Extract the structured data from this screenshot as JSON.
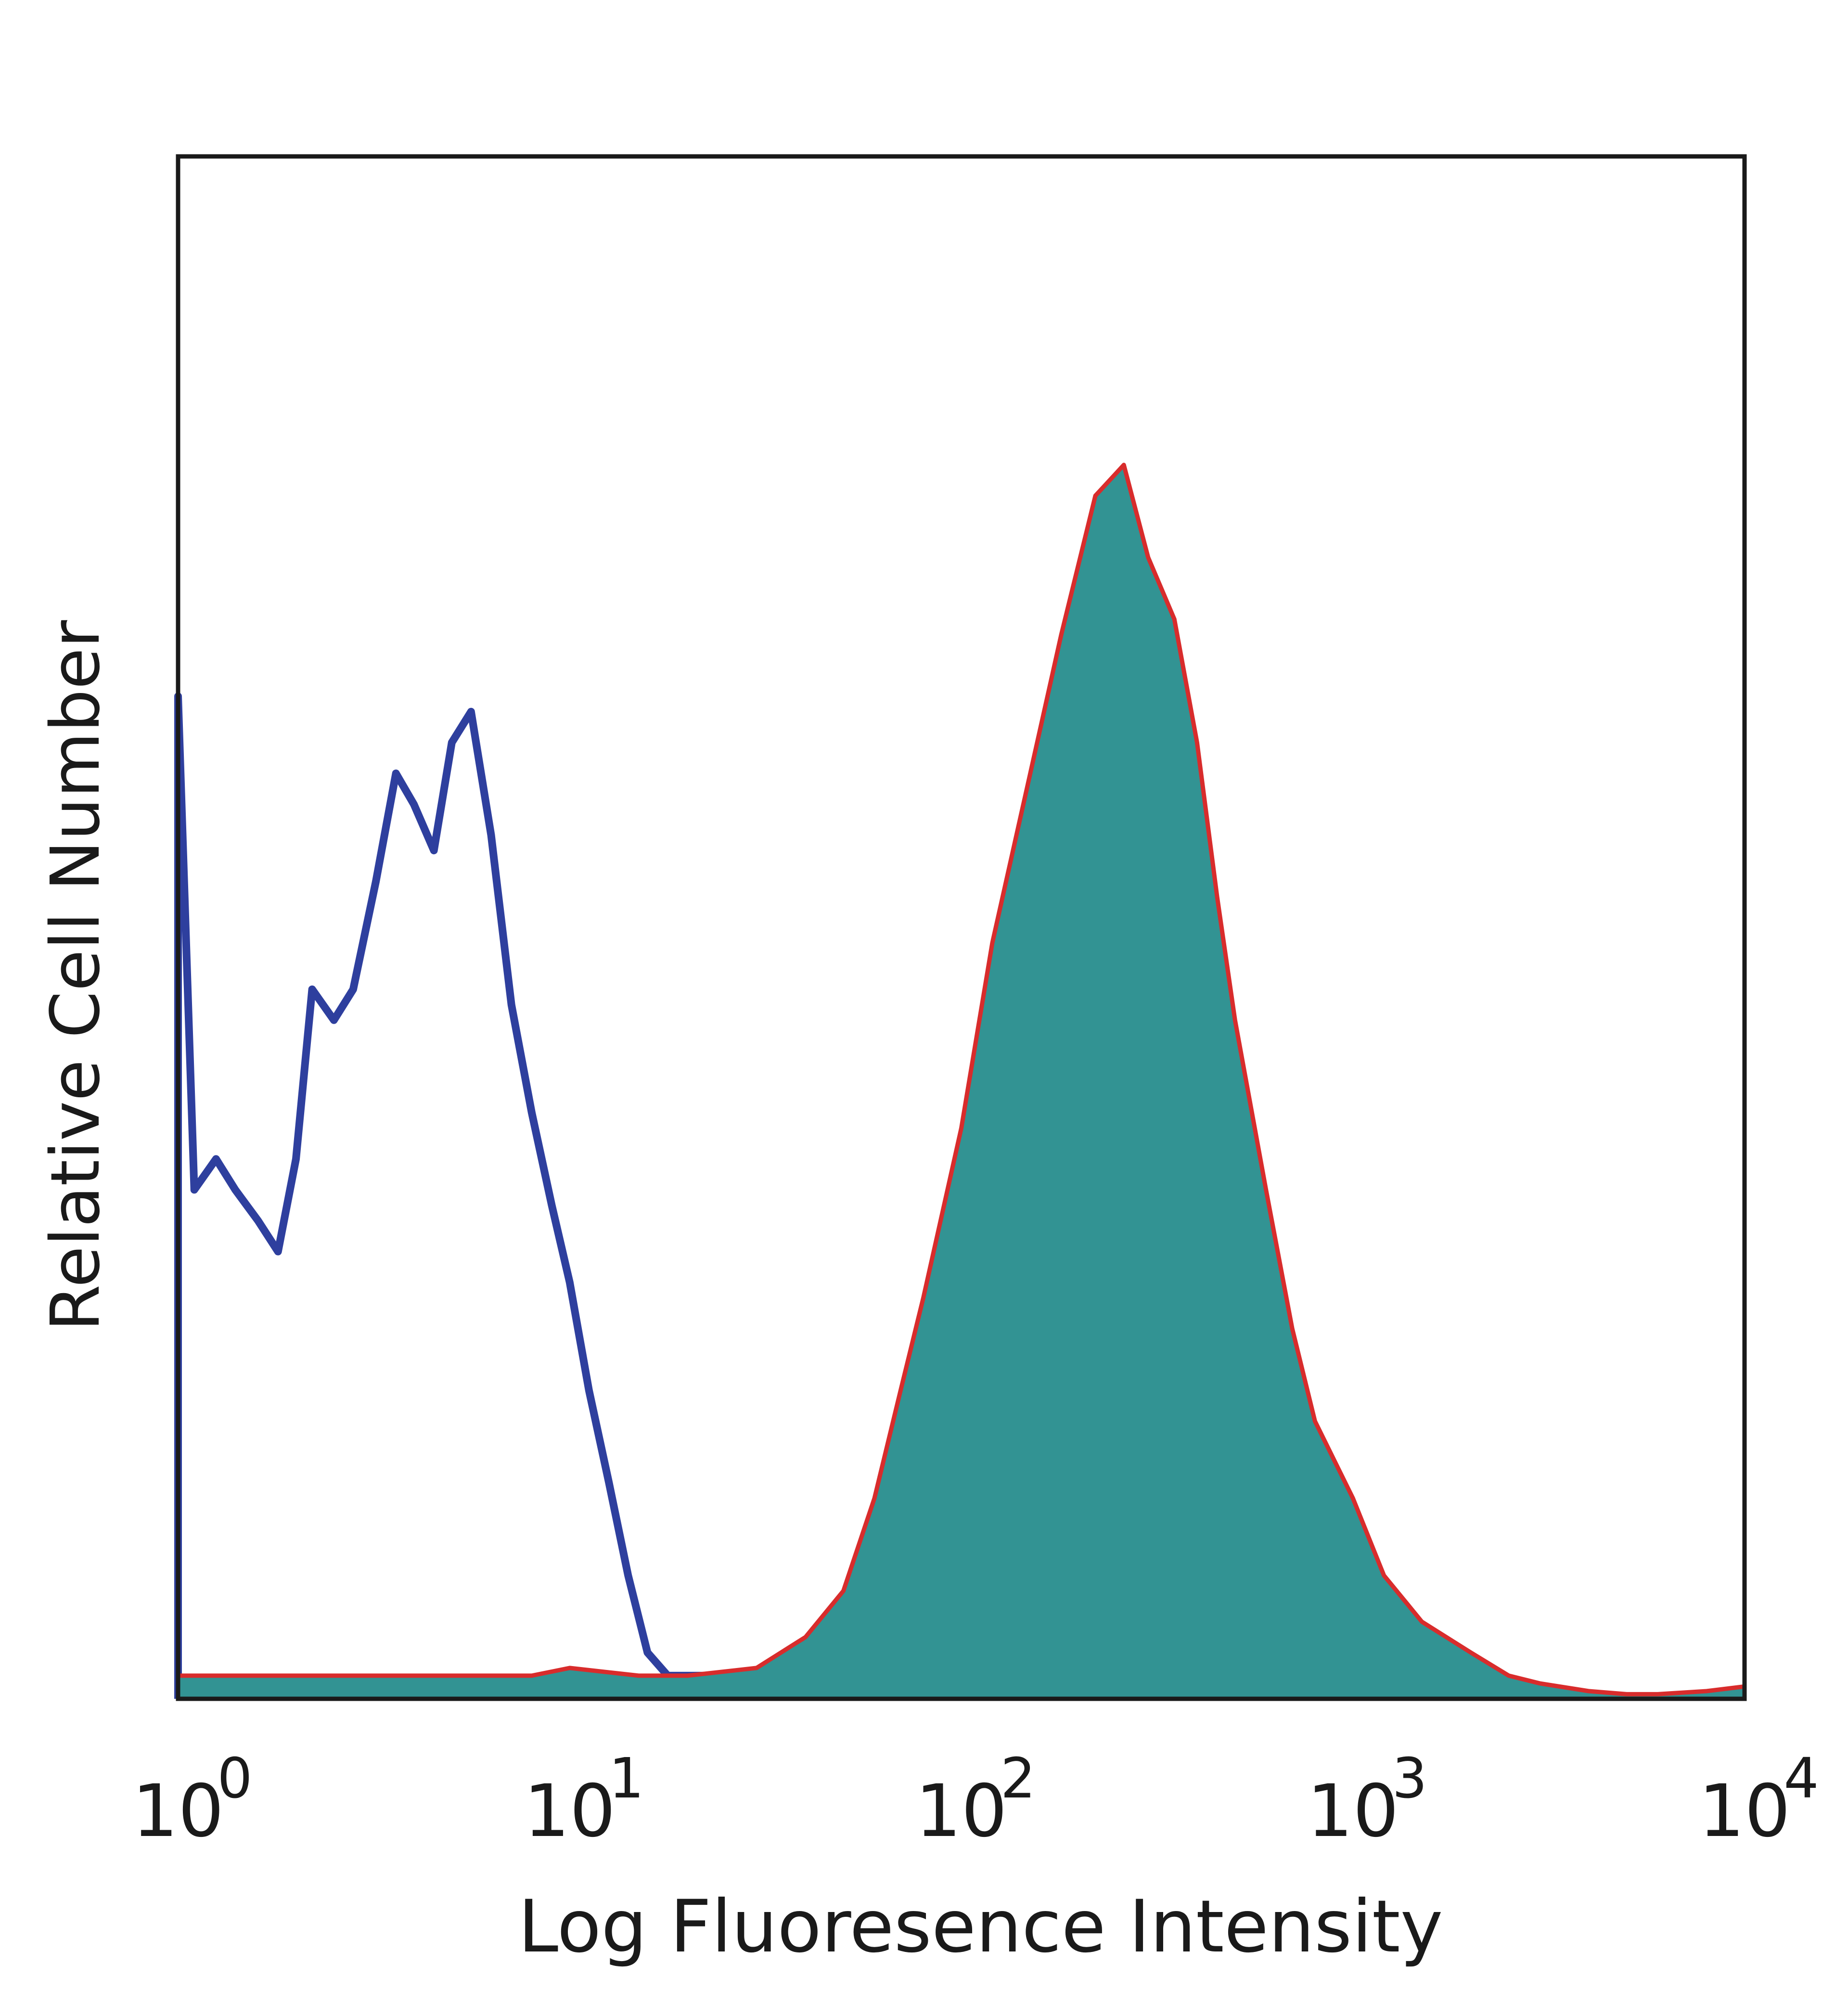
{
  "chart_data": {
    "type": "area",
    "title": "",
    "xlabel": "Log Fluoresence Intensity",
    "ylabel": "Relative Cell Number",
    "x_scale": "log",
    "xlim": [
      1,
      10000
    ],
    "ylim": [
      0,
      100
    ],
    "y_ticks_shown": false,
    "grid": false,
    "legend": "none",
    "x_ticks": [
      {
        "value": 1,
        "base": "10",
        "exp": "0"
      },
      {
        "value": 10,
        "base": "10",
        "exp": "1"
      },
      {
        "value": 100,
        "base": "10",
        "exp": "2"
      },
      {
        "value": 1000,
        "base": "10",
        "exp": "3"
      },
      {
        "value": 10000,
        "base": "10",
        "exp": "4"
      }
    ],
    "series": [
      {
        "style": "outline",
        "color": "#2e3f9e",
        "x": [
          1.0,
          1.1,
          1.25,
          1.4,
          1.6,
          1.8,
          2.0,
          2.2,
          2.5,
          2.8,
          3.2,
          3.6,
          4.0,
          4.5,
          5.0,
          5.6,
          6.3,
          7.1,
          8.0,
          9.0,
          10.0,
          11.2,
          12.6,
          14.1,
          15.8,
          17.8,
          20.0,
          25.0,
          30.0,
          35.0
        ],
        "y": [
          65,
          33,
          35,
          33,
          31,
          29,
          35,
          46,
          44,
          46,
          53,
          60,
          58,
          55,
          62,
          64,
          56,
          45,
          38,
          32,
          27,
          20,
          14,
          8,
          3,
          1.5,
          1.5,
          1.5,
          1.5,
          1.5
        ]
      },
      {
        "style": "filled",
        "color": "#329393",
        "outline_color": "#d82c2c",
        "x": [
          1.0,
          2.0,
          5.0,
          8.0,
          10.0,
          15.0,
          20.0,
          30.0,
          40.0,
          50.0,
          60.0,
          70.0,
          80.0,
          100.0,
          120.0,
          150.0,
          180.0,
          220.0,
          260.0,
          300.0,
          350.0,
          400.0,
          450.0,
          500.0,
          600.0,
          700.0,
          800.0,
          1000.0,
          1200.0,
          1500.0,
          2000.0,
          2500.0,
          3000.0,
          4000.0,
          5000.0,
          6000.0,
          8000.0,
          10000.0
        ],
        "y": [
          1.5,
          1.5,
          1.5,
          1.5,
          2,
          1.5,
          1.5,
          2,
          4,
          7,
          13,
          20,
          26,
          37,
          49,
          60,
          69,
          78,
          80,
          74,
          70,
          62,
          52,
          44,
          33,
          24,
          18,
          13,
          8,
          5,
          3,
          1.5,
          1,
          0.5,
          0.3,
          0.3,
          0.5,
          0.8
        ]
      }
    ]
  }
}
